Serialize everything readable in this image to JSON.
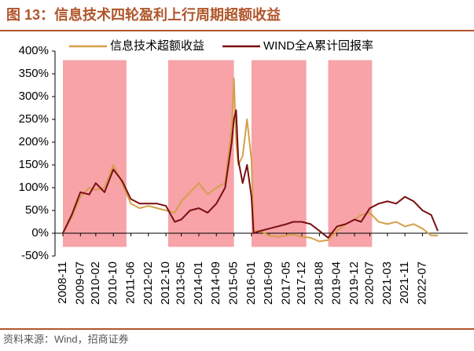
{
  "chart_data": {
    "type": "line",
    "title": "图 13：信息技术四轮盈利上行周期超额收益",
    "source": "资料来源：Wind，招商证券",
    "x": [
      "2008-11",
      "2009-03",
      "2009-07",
      "2009-11",
      "2010-02",
      "2010-06",
      "2010-10",
      "2011-02",
      "2011-06",
      "2011-10",
      "2012-02",
      "2012-06",
      "2012-10",
      "2013-02",
      "2013-05",
      "2013-09",
      "2014-01",
      "2014-05",
      "2014-09",
      "2015-01",
      "2015-04",
      "2015-05",
      "2015-06",
      "2015-07",
      "2015-09",
      "2015-11",
      "2016-01",
      "2016-02",
      "2016-05",
      "2016-09",
      "2017-01",
      "2017-05",
      "2017-08",
      "2017-12",
      "2018-04",
      "2018-08",
      "2018-12",
      "2019-04",
      "2019-08",
      "2019-12",
      "2020-03",
      "2020-07",
      "2020-11",
      "2021-03",
      "2021-07",
      "2021-11",
      "2022-03",
      "2022-07",
      "2022-11",
      "2023-02"
    ],
    "series": [
      {
        "name": "信息技术超额收益",
        "color": "#d4a04a",
        "values": [
          0,
          35,
          80,
          100,
          95,
          100,
          150,
          110,
          65,
          55,
          60,
          55,
          50,
          45,
          70,
          90,
          110,
          85,
          100,
          110,
          230,
          340,
          200,
          150,
          170,
          250,
          160,
          5,
          5,
          -5,
          -8,
          -5,
          -3,
          -8,
          -10,
          -18,
          -15,
          5,
          20,
          30,
          40,
          45,
          25,
          20,
          25,
          15,
          20,
          10,
          -5,
          -5
        ]
      },
      {
        "name": "WIND全A累计回报率",
        "color": "#7a0e12",
        "values": [
          0,
          40,
          90,
          85,
          110,
          90,
          140,
          115,
          75,
          65,
          65,
          65,
          60,
          25,
          30,
          50,
          55,
          45,
          65,
          100,
          200,
          250,
          270,
          160,
          110,
          150,
          80,
          0,
          5,
          10,
          15,
          20,
          25,
          25,
          20,
          5,
          -10,
          15,
          20,
          30,
          25,
          55,
          65,
          70,
          65,
          80,
          70,
          50,
          40,
          5
        ]
      }
    ],
    "shaded_periods": [
      [
        "2008-11",
        "2011-04"
      ],
      [
        "2012-11",
        "2015-05"
      ],
      [
        "2016-01",
        "2018-02"
      ],
      [
        "2018-12",
        "2020-08"
      ]
    ],
    "shade_color": "#f7a3a8",
    "shade_range": [
      -30,
      380
    ],
    "ylim": [
      -50,
      400
    ],
    "yticks": [
      {
        "value": -50,
        "label": "-50%"
      },
      {
        "value": 0,
        "label": "0%"
      },
      {
        "value": 50,
        "label": "50%"
      },
      {
        "value": 100,
        "label": "100%"
      },
      {
        "value": 150,
        "label": "150%"
      },
      {
        "value": 200,
        "label": "200%"
      },
      {
        "value": 250,
        "label": "250%"
      },
      {
        "value": 300,
        "label": "300%"
      },
      {
        "value": 350,
        "label": "350%"
      },
      {
        "value": 400,
        "label": "400%"
      }
    ],
    "xticks": [
      "2008-11",
      "2009-07",
      "2010-02",
      "2010-10",
      "2011-06",
      "2012-02",
      "2012-10",
      "2013-05",
      "2014-01",
      "2014-09",
      "2015-05",
      "2016-01",
      "2016-09",
      "2017-05",
      "2017-12",
      "2018-08",
      "2019-04",
      "2019-12",
      "2020-07",
      "2021-03",
      "2021-11",
      "2022-07"
    ],
    "legend": "top"
  }
}
